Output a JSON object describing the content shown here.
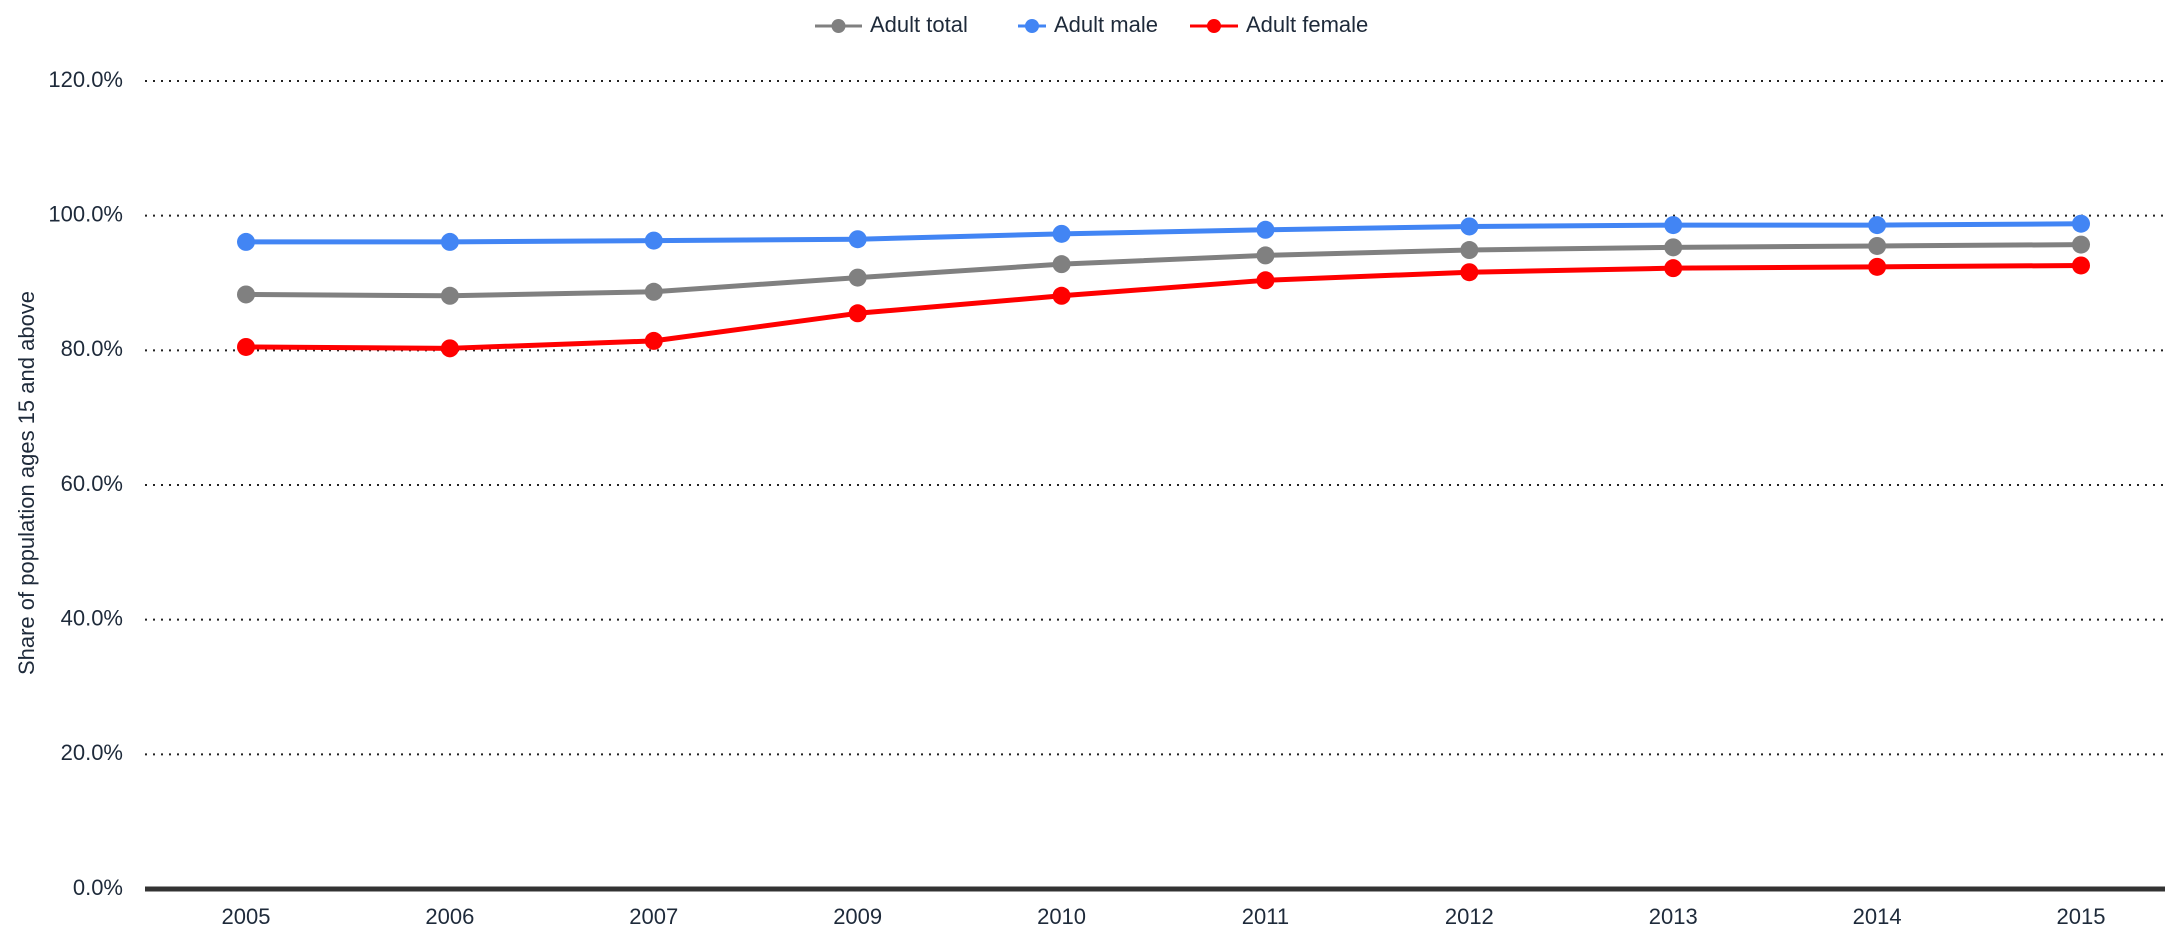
{
  "chart_data": {
    "type": "line",
    "y_axis_label": "Share of population ages 15 and above",
    "categories": [
      "2005",
      "2006",
      "2007",
      "2009",
      "2010",
      "2011",
      "2012",
      "2013",
      "2014",
      "2015"
    ],
    "series": [
      {
        "name": "Adult total",
        "color": "#808080",
        "values": [
          88.3,
          88.1,
          88.7,
          90.8,
          92.8,
          94.1,
          94.9,
          95.3,
          95.5,
          95.7
        ]
      },
      {
        "name": "Adult male",
        "color": "#4285f4",
        "values": [
          96.1,
          96.1,
          96.3,
          96.5,
          97.3,
          97.9,
          98.4,
          98.6,
          98.6,
          98.8
        ]
      },
      {
        "name": "Adult female",
        "color": "#ff0000",
        "values": [
          80.5,
          80.3,
          81.4,
          85.5,
          88.1,
          90.4,
          91.6,
          92.2,
          92.4,
          92.6
        ]
      }
    ],
    "ylim": [
      0,
      120
    ],
    "yticks": [
      {
        "value": 0,
        "label": "0.0%"
      },
      {
        "value": 20,
        "label": "20.0%"
      },
      {
        "value": 40,
        "label": "40.0%"
      },
      {
        "value": 60,
        "label": "60.0%"
      },
      {
        "value": 80,
        "label": "80.0%"
      },
      {
        "value": 100,
        "label": "100.0%"
      },
      {
        "value": 120,
        "label": "120.0%"
      }
    ],
    "grid": true,
    "legend": "top"
  }
}
